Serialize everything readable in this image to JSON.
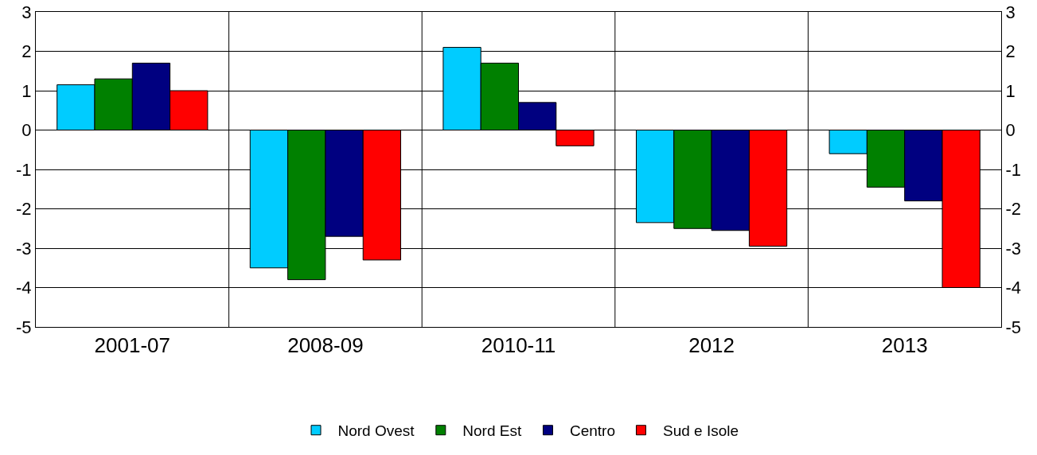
{
  "chart_data": {
    "type": "bar",
    "categories": [
      "2001-07",
      "2008-09",
      "2010-11",
      "2012",
      "2013"
    ],
    "series": [
      {
        "name": "Nord Ovest",
        "color": "#00ccff",
        "values": [
          1.15,
          -3.5,
          2.1,
          -2.35,
          -0.6
        ]
      },
      {
        "name": "Nord Est",
        "color": "#008000",
        "values": [
          1.3,
          -3.8,
          1.7,
          -2.5,
          -1.45
        ]
      },
      {
        "name": "Centro",
        "color": "#000080",
        "values": [
          1.7,
          -2.7,
          0.7,
          -2.55,
          -1.8
        ]
      },
      {
        "name": "Sud e Isole",
        "color": "#ff0000",
        "values": [
          1.0,
          -3.3,
          -0.4,
          -2.95,
          -4.0
        ]
      }
    ],
    "ylim": [
      -5,
      3
    ],
    "yticks": [
      -5,
      -4,
      -3,
      -2,
      -1,
      0,
      1,
      2,
      3
    ],
    "y2lim": [
      -5,
      3
    ],
    "y2ticks": [
      -5,
      -4,
      -3,
      -2,
      -1,
      0,
      1,
      2,
      3
    ],
    "grid": true,
    "legend": "bottom"
  }
}
